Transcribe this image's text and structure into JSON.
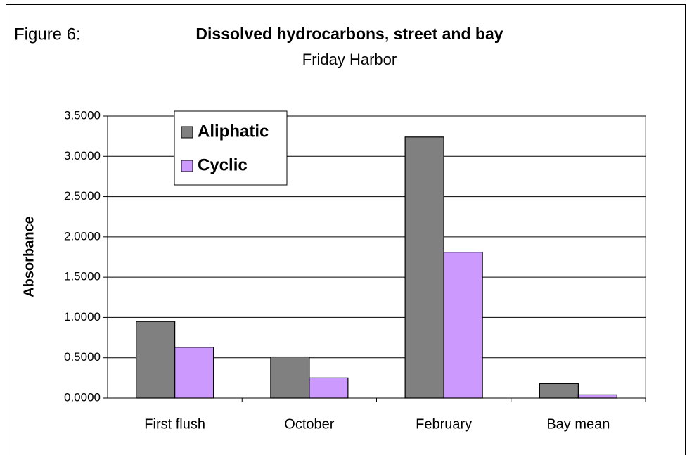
{
  "chart_data": {
    "type": "bar",
    "figure_label": "Figure 6:",
    "title": "Dissolved hydrocarbons, street and bay",
    "subtitle": "Friday Harbor",
    "ylabel": "Absorbance",
    "categories": [
      "First flush",
      "October",
      "February",
      "Bay mean"
    ],
    "series": [
      {
        "name": "Aliphatic",
        "color": "#808080",
        "values": [
          0.95,
          0.51,
          3.24,
          0.18
        ]
      },
      {
        "name": "Cyclic",
        "color": "#cc99ff",
        "values": [
          0.63,
          0.25,
          1.81,
          0.04
        ]
      }
    ],
    "ylim": [
      0,
      3.5
    ],
    "yticks": [
      {
        "value": 0,
        "label": "0.0000"
      },
      {
        "value": 0.5,
        "label": "0.5000"
      },
      {
        "value": 1,
        "label": "1.0000"
      },
      {
        "value": 1.5,
        "label": "1.5000"
      },
      {
        "value": 2,
        "label": "2.0000"
      },
      {
        "value": 2.5,
        "label": "2.5000"
      },
      {
        "value": 3,
        "label": "3.0000"
      },
      {
        "value": 3.5,
        "label": "3.5000"
      }
    ],
    "grid": true,
    "legend": "top-left"
  }
}
